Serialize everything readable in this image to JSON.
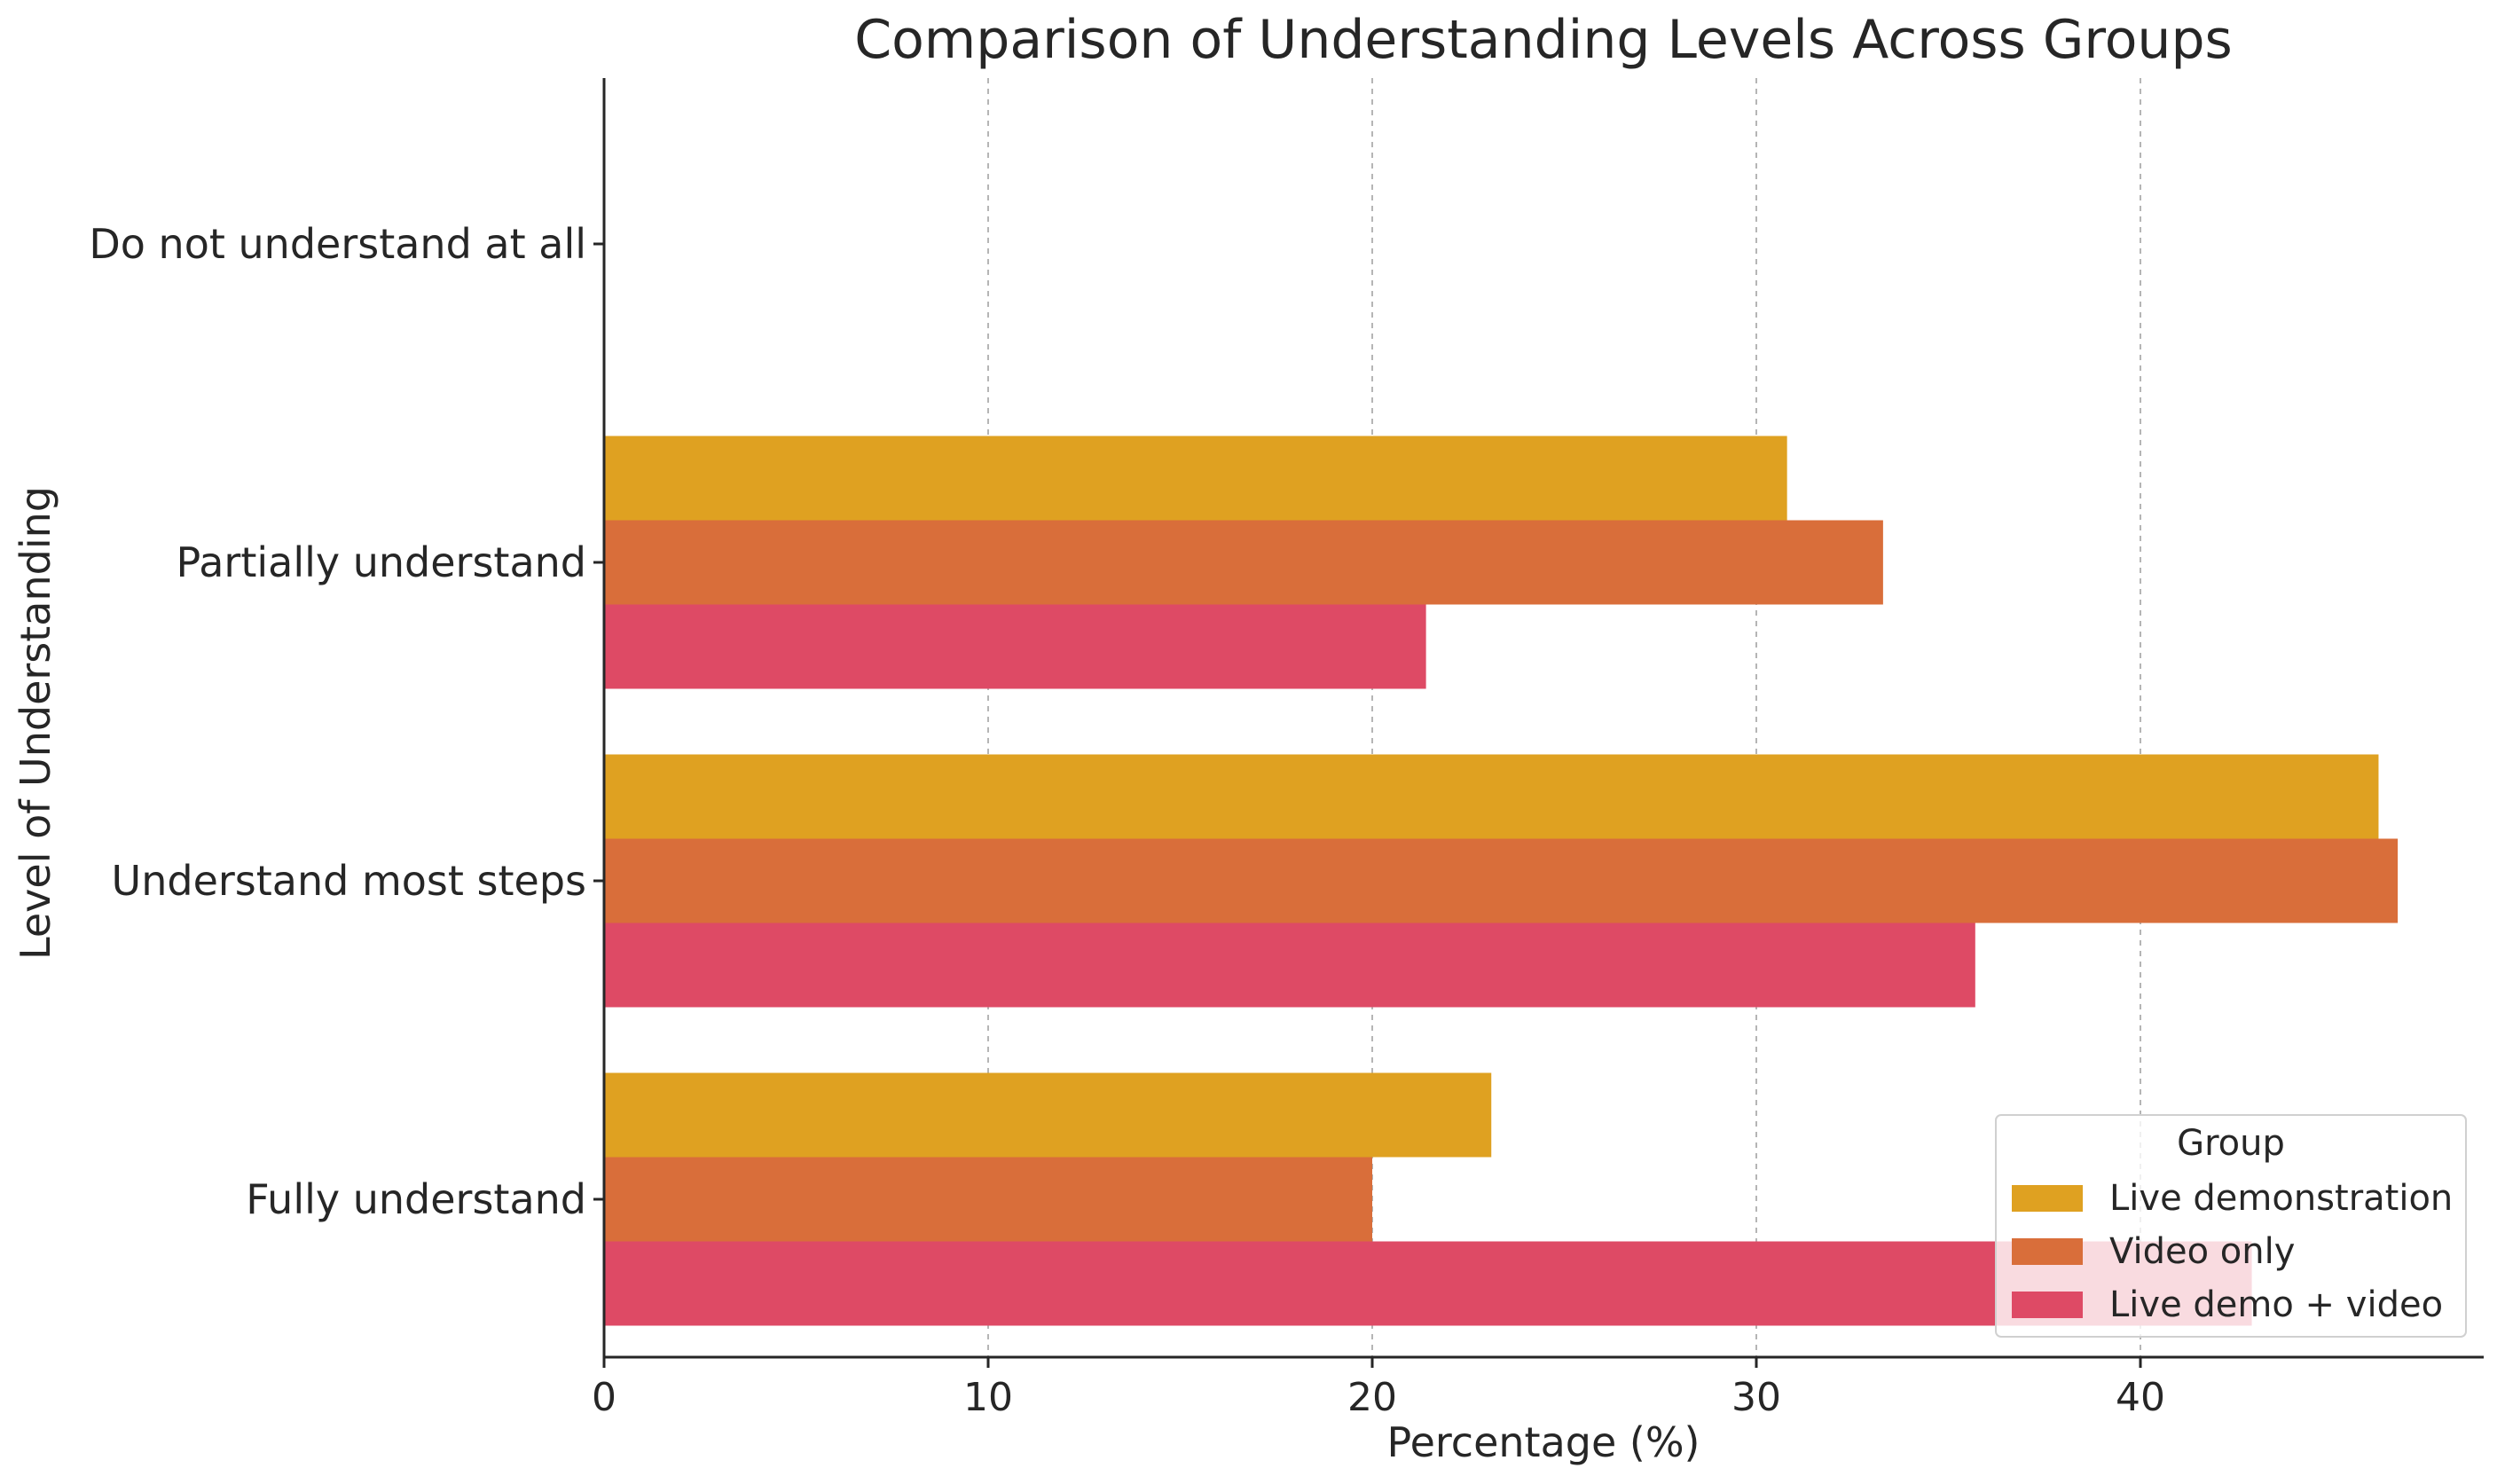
{
  "chart_data": {
    "type": "bar",
    "orientation": "horizontal",
    "title": "Comparison of Understanding Levels Across Groups",
    "xlabel": "Percentage (%)",
    "ylabel": "Level of Understanding",
    "xlim": [
      0,
      49
    ],
    "xticks": [
      0,
      10,
      20,
      30,
      40
    ],
    "xtick_labels": [
      "0",
      "10",
      "20",
      "30",
      "40"
    ],
    "grid": "x",
    "categories": [
      "Do not understand at all",
      "Partially understand",
      "Understand most steps",
      "Fully understand"
    ],
    "series": [
      {
        "name": "Live demonstration",
        "color": "#DFA121",
        "values": [
          0,
          30.8,
          46.2,
          23.1
        ]
      },
      {
        "name": "Video only",
        "color": "#D96E3A",
        "values": [
          0,
          33.3,
          46.7,
          20.0
        ]
      },
      {
        "name": "Live demo + video",
        "color": "#DE4A65",
        "values": [
          0,
          21.4,
          35.7,
          42.9
        ]
      }
    ],
    "legend": {
      "title": "Group",
      "position": "lower-right"
    }
  }
}
